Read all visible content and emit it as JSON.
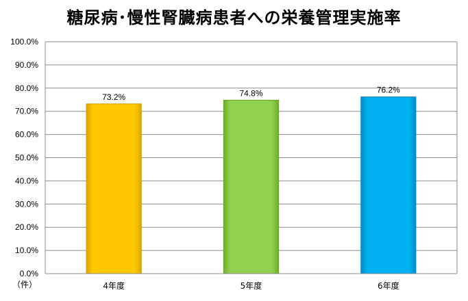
{
  "chart_data": {
    "type": "bar",
    "title": "糖尿病･慢性腎臓病患者への栄養管理実施率",
    "unit_label": "（件）",
    "categories": [
      "4年度",
      "5年度",
      "6年度"
    ],
    "values": [
      73.2,
      74.8,
      76.2
    ],
    "data_labels": [
      "73.2%",
      "74.8%",
      "76.2%"
    ],
    "ylim": [
      0,
      100
    ],
    "y_ticks": [
      0,
      10,
      20,
      30,
      40,
      50,
      60,
      70,
      80,
      90,
      100
    ],
    "y_tick_labels": [
      "0.0%",
      "10.0%",
      "20.0%",
      "30.0%",
      "40.0%",
      "50.0%",
      "60.0%",
      "70.0%",
      "80.0%",
      "90.0%",
      "100.0%"
    ],
    "grid": true,
    "legend": "none",
    "colors": [
      "#FFC800",
      "#92D050",
      "#00B0F0"
    ]
  }
}
